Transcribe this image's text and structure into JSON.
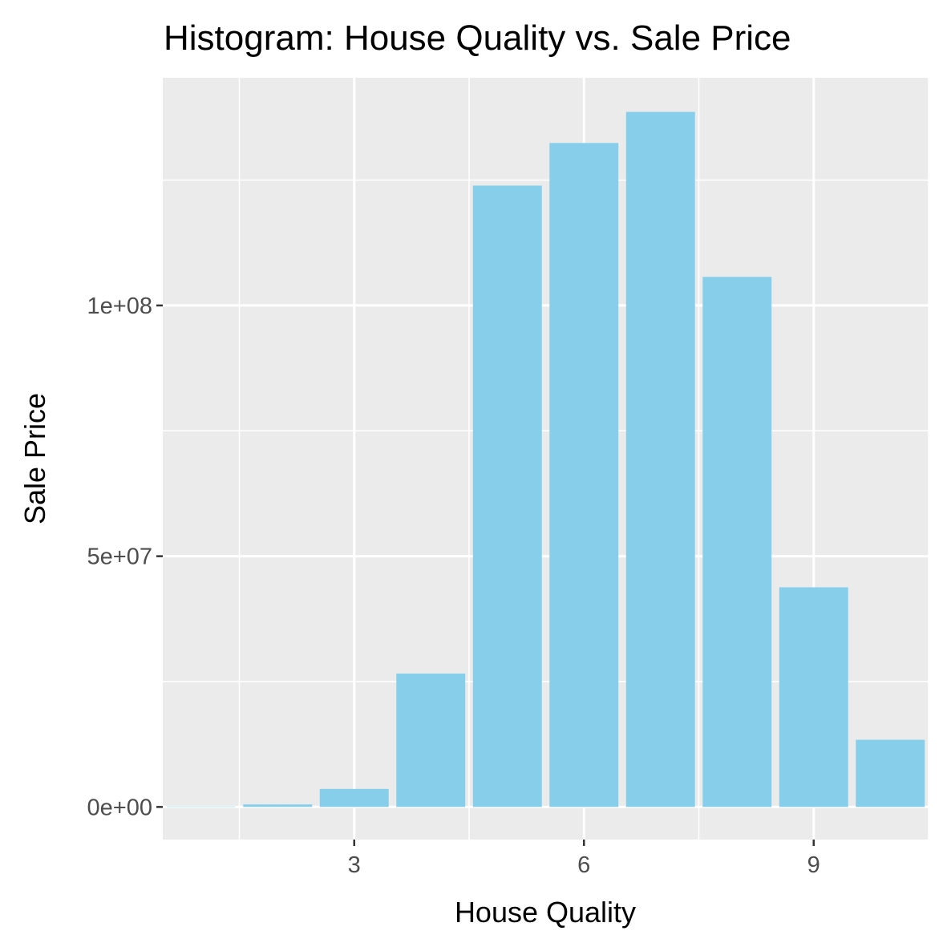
{
  "chart_data": {
    "type": "bar",
    "title": "Histogram: House Quality vs. Sale Price",
    "xlabel": "House Quality",
    "ylabel": "Sale Price",
    "x": [
      1,
      2,
      3,
      4,
      5,
      6,
      7,
      8,
      9,
      10
    ],
    "values": [
      100000,
      500000,
      3600000,
      26600000,
      123900000,
      132400000,
      138600000,
      105700000,
      43800000,
      13400000
    ],
    "xlim": [
      0.5,
      10.5
    ],
    "ylim": [
      -6500000,
      145400000
    ],
    "xticks": [
      3,
      6,
      9
    ],
    "xtick_labels": [
      "3",
      "6",
      "9"
    ],
    "yticks": [
      0,
      50000000,
      100000000
    ],
    "ytick_labels": [
      "0e+00",
      "5e+07",
      "1e+08"
    ],
    "grid": true,
    "bar_color": "#87CEEB",
    "panel_color": "#EBEBEB",
    "grid_color": "#FFFFFF",
    "tick_color": "#333333"
  }
}
